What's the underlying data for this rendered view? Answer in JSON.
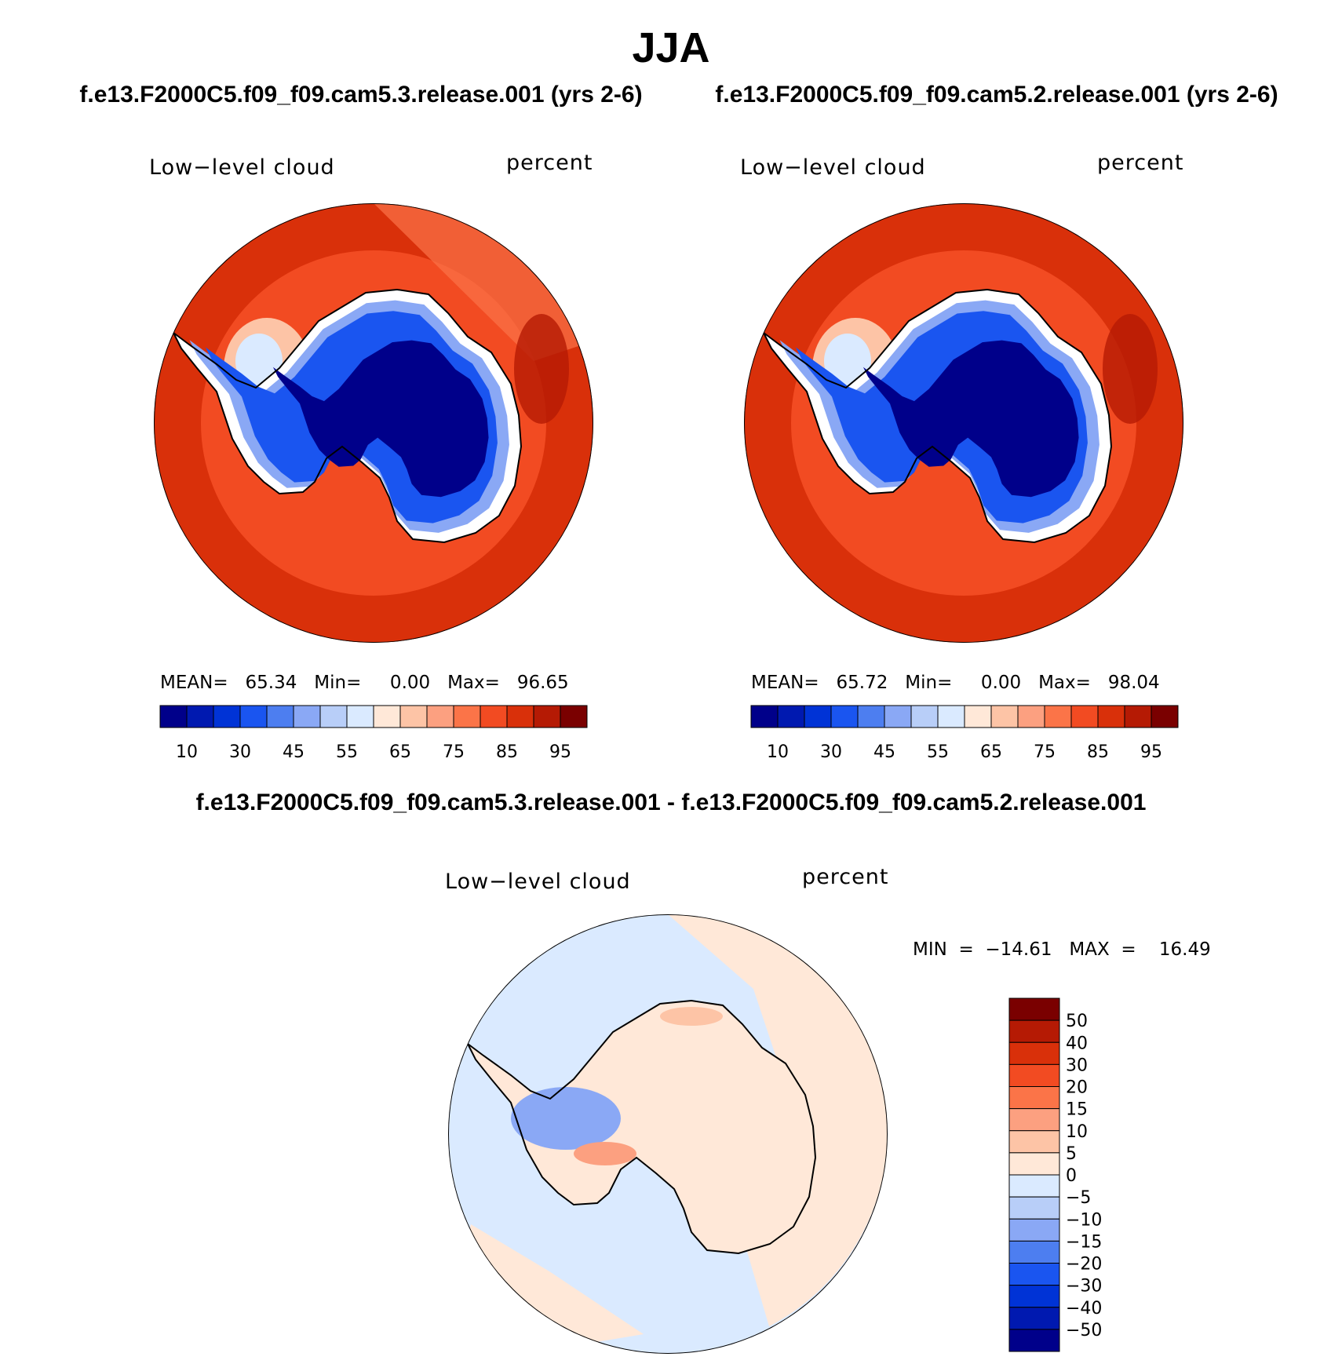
{
  "title": "JJA",
  "panels": [
    {
      "case_title": "f.e13.F2000C5.f09_f09.cam5.3.release.001 (yrs 2-6)",
      "variable": "Low−level cloud",
      "units": "percent",
      "mean": "65.34",
      "min": "0.00",
      "max": "96.65",
      "stats_text": "MEAN=   65.34   Min=     0.00   Max=   96.65"
    },
    {
      "case_title": "f.e13.F2000C5.f09_f09.cam5.2.release.001 (yrs 2-6)",
      "variable": "Low−level cloud",
      "units": "percent",
      "mean": "65.72",
      "min": "0.00",
      "max": "98.04",
      "stats_text": "MEAN=   65.72   Min=     0.00   Max=   98.04"
    }
  ],
  "difference": {
    "title": "f.e13.F2000C5.f09_f09.cam5.3.release.001 - f.e13.F2000C5.f09_f09.cam5.2.release.001",
    "variable": "Low−level cloud",
    "units": "percent",
    "min": "−14.61",
    "max": "16.49",
    "stats_text": "MIN  =  −14.61   MAX  =    16.49"
  },
  "colorbars": {
    "main": {
      "colors": [
        "#00008a",
        "#0019b0",
        "#0033d6",
        "#1a55f0",
        "#4d7ef0",
        "#8aa8f5",
        "#b8cef8",
        "#daeaff",
        "#ffe8d8",
        "#fdc4a6",
        "#fca080",
        "#fb7448",
        "#f24b22",
        "#d9300a",
        "#b51a04",
        "#7a0000"
      ],
      "tick_labels": [
        "10",
        "30",
        "45",
        "55",
        "65",
        "75",
        "85",
        "95"
      ]
    },
    "diff": {
      "colors": [
        "#7a0000",
        "#b51a04",
        "#d9300a",
        "#f24b22",
        "#fb7448",
        "#fca080",
        "#fdc4a6",
        "#ffe8d8",
        "#daeaff",
        "#b8cef8",
        "#8aa8f5",
        "#4d7ef0",
        "#1a55f0",
        "#0033d6",
        "#0019b0",
        "#00008a"
      ],
      "tick_labels": [
        "50",
        "40",
        "30",
        "20",
        "15",
        "10",
        "5",
        "0",
        "−5",
        "−10",
        "−15",
        "−20",
        "−30",
        "−40",
        "−50"
      ]
    }
  }
}
